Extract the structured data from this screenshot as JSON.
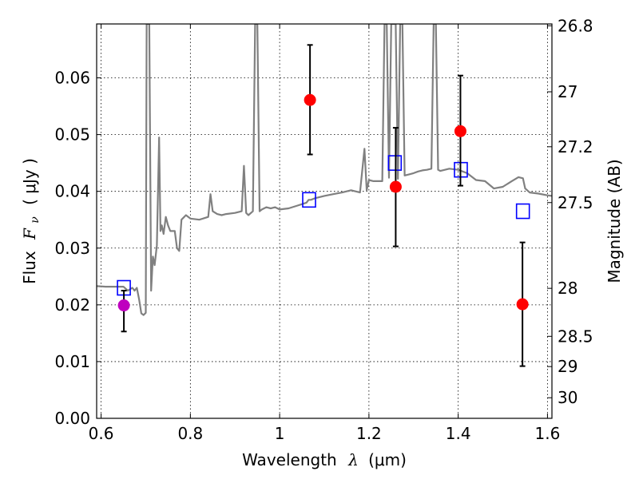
{
  "chart_data": {
    "type": "scatter",
    "xlabel_prefix": "Wavelength",
    "xlabel_symbol": "λ",
    "xlabel_unit": "(μm)",
    "ylabel_prefix": "Flux",
    "ylabel_symbol": "F",
    "ylabel_sub": "ν",
    "ylabel_unit": "( μJy )",
    "y2label": "Magnitude (AB)",
    "xlim": [
      0.59,
      1.61
    ],
    "ylim": [
      0.0,
      0.0695
    ],
    "grid": true,
    "x_ticks": [
      0.6,
      0.8,
      1.0,
      1.2,
      1.4,
      1.6
    ],
    "x_tick_labels": [
      "0.6",
      "0.8",
      "1",
      "1.2",
      "1.4",
      "1.6"
    ],
    "y_ticks": [
      0.0,
      0.01,
      0.02,
      0.03,
      0.04,
      0.05,
      0.06
    ],
    "y_tick_labels": [
      "0.00",
      "0.01",
      "0.02",
      "0.03",
      "0.04",
      "0.05",
      "0.06"
    ],
    "y2_ticks": [
      {
        "flux": 0.06918,
        "label": "26.8"
      },
      {
        "flux": 0.05754,
        "label": "27"
      },
      {
        "flux": 0.04786,
        "label": "27.2"
      },
      {
        "flux": 0.03802,
        "label": "27.5"
      },
      {
        "flux": 0.02291,
        "label": "28"
      },
      {
        "flux": 0.01445,
        "label": "28.5"
      },
      {
        "flux": 0.00912,
        "label": "29"
      },
      {
        "flux": 0.00363,
        "label": "30"
      }
    ],
    "series": [
      {
        "kind": "spectrum",
        "color": "#808080",
        "x": [
          0.59,
          0.61,
          0.63,
          0.65,
          0.66,
          0.67,
          0.675,
          0.68,
          0.685,
          0.69,
          0.695,
          0.7,
          0.702,
          0.704,
          0.706,
          0.708,
          0.712,
          0.716,
          0.72,
          0.725,
          0.73,
          0.733,
          0.736,
          0.74,
          0.745,
          0.75,
          0.755,
          0.76,
          0.765,
          0.77,
          0.775,
          0.78,
          0.79,
          0.8,
          0.82,
          0.84,
          0.845,
          0.85,
          0.86,
          0.87,
          0.88,
          0.9,
          0.915,
          0.92,
          0.925,
          0.93,
          0.94,
          0.945,
          0.95,
          0.955,
          0.96,
          0.97,
          0.98,
          0.99,
          1.0,
          1.02,
          1.04,
          1.06,
          1.065,
          1.07,
          1.08,
          1.1,
          1.12,
          1.14,
          1.16,
          1.18,
          1.19,
          1.195,
          1.2,
          1.21,
          1.22,
          1.23,
          1.235,
          1.24,
          1.245,
          1.25,
          1.26,
          1.265,
          1.27,
          1.275,
          1.28,
          1.29,
          1.3,
          1.31,
          1.32,
          1.33,
          1.34,
          1.345,
          1.35,
          1.355,
          1.36,
          1.38,
          1.4,
          1.42,
          1.44,
          1.46,
          1.48,
          1.5,
          1.52,
          1.535,
          1.545,
          1.55,
          1.56,
          1.58,
          1.6,
          1.61
        ],
        "y": [
          0.0233,
          0.0232,
          0.0232,
          0.0232,
          0.0225,
          0.023,
          0.0225,
          0.023,
          0.021,
          0.0185,
          0.0182,
          0.0186,
          0.0695,
          0.0695,
          0.0695,
          0.0695,
          0.0225,
          0.0285,
          0.027,
          0.0305,
          0.0495,
          0.033,
          0.034,
          0.0325,
          0.0355,
          0.034,
          0.033,
          0.033,
          0.033,
          0.03,
          0.0295,
          0.035,
          0.0358,
          0.0352,
          0.035,
          0.0355,
          0.0395,
          0.0365,
          0.036,
          0.0358,
          0.036,
          0.0362,
          0.0365,
          0.0445,
          0.0362,
          0.0358,
          0.0365,
          0.0695,
          0.0695,
          0.0365,
          0.0368,
          0.0372,
          0.037,
          0.0372,
          0.0368,
          0.037,
          0.0375,
          0.038,
          0.0385,
          0.0385,
          0.0388,
          0.0392,
          0.0395,
          0.0398,
          0.0402,
          0.0398,
          0.0475,
          0.0402,
          0.042,
          0.0418,
          0.0418,
          0.0418,
          0.0695,
          0.0695,
          0.0424,
          0.0695,
          0.0695,
          0.0422,
          0.0695,
          0.0695,
          0.0428,
          0.043,
          0.0432,
          0.0435,
          0.0437,
          0.0438,
          0.044,
          0.0695,
          0.0695,
          0.0438,
          0.0436,
          0.044,
          0.0438,
          0.0432,
          0.042,
          0.0418,
          0.0405,
          0.0408,
          0.0418,
          0.0425,
          0.0423,
          0.0405,
          0.0398,
          0.0396,
          0.0393,
          0.0392
        ]
      },
      {
        "kind": "model-photometry",
        "marker": "open-square",
        "color": "#0000ff",
        "x": [
          0.651,
          1.066,
          1.258,
          1.406,
          1.545
        ],
        "y": [
          0.023,
          0.0385,
          0.045,
          0.0438,
          0.0365
        ]
      },
      {
        "kind": "observed-photometry",
        "marker": "filled-circle",
        "color": "#ff0000",
        "x": [
          1.068,
          1.26,
          1.405,
          1.544
        ],
        "y": [
          0.0561,
          0.0408,
          0.0506,
          0.0201
        ],
        "yerr_low": [
          0.0465,
          0.0303,
          0.041,
          0.0092
        ],
        "yerr_high": [
          0.0658,
          0.0512,
          0.0604,
          0.031
        ]
      },
      {
        "kind": "observed-photometry",
        "marker": "filled-circle",
        "color": "#bf00bf",
        "x": [
          0.651
        ],
        "y": [
          0.0199
        ],
        "yerr_low": [
          0.0153
        ],
        "yerr_high": [
          0.0225
        ]
      }
    ]
  }
}
